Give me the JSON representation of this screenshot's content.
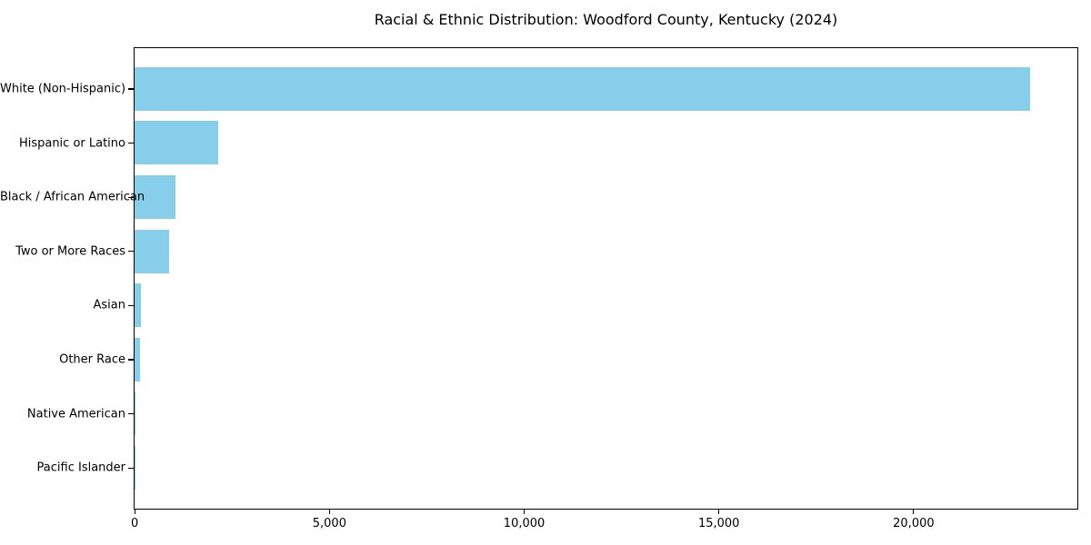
{
  "chart_data": {
    "type": "bar",
    "orientation": "horizontal",
    "title": "Racial & Ethnic Distribution: Woodford County, Kentucky (2024)",
    "categories": [
      "White (Non-Hispanic)",
      "Hispanic or Latino",
      "Black / African American",
      "Two or More Races",
      "Asian",
      "Other Race",
      "Native American",
      "Pacific Islander"
    ],
    "values": [
      23000,
      2140,
      1050,
      880,
      170,
      140,
      30,
      10
    ],
    "bar_color": "#87CEEB",
    "xlabel": "",
    "ylabel": "",
    "xlim": [
      0,
      24200
    ],
    "xticks": [
      0,
      5000,
      10000,
      15000,
      20000
    ],
    "xtick_labels": [
      "0",
      "5,000",
      "10,000",
      "15,000",
      "20,000"
    ],
    "grid": false,
    "legend_position": "none",
    "background_color": "#ffffff",
    "text_color": "#000000"
  }
}
